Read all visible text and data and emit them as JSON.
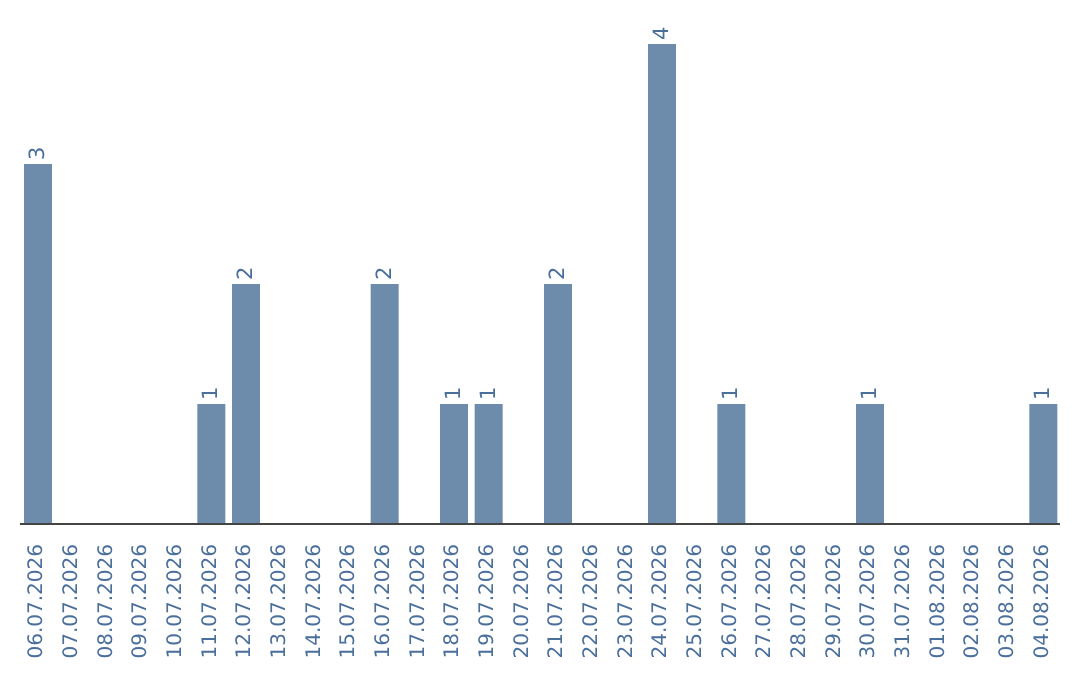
{
  "chart_data": {
    "type": "bar",
    "categories": [
      "06.07.2026",
      "07.07.2026",
      "08.07.2026",
      "09.07.2026",
      "10.07.2026",
      "11.07.2026",
      "12.07.2026",
      "13.07.2026",
      "14.07.2026",
      "15.07.2026",
      "16.07.2026",
      "17.07.2026",
      "18.07.2026",
      "19.07.2026",
      "20.07.2026",
      "21.07.2026",
      "22.07.2026",
      "23.07.2026",
      "24.07.2026",
      "25.07.2026",
      "26.07.2026",
      "27.07.2026",
      "28.07.2026",
      "29.07.2026",
      "30.07.2026",
      "31.07.2026",
      "01.08.2026",
      "02.08.2026",
      "03.08.2026",
      "04.08.2026"
    ],
    "values": [
      3,
      0,
      0,
      0,
      0,
      1,
      2,
      0,
      0,
      0,
      2,
      0,
      1,
      1,
      0,
      2,
      0,
      0,
      4,
      0,
      1,
      0,
      0,
      0,
      1,
      0,
      0,
      0,
      0,
      1
    ],
    "value_labels": [
      "3",
      null,
      null,
      null,
      null,
      "1",
      "2",
      null,
      null,
      null,
      "2",
      null,
      "1",
      "1",
      null,
      "2",
      null,
      null,
      "4",
      null,
      "1",
      null,
      null,
      null,
      "1",
      null,
      null,
      null,
      null,
      "1"
    ],
    "color": "#6d8cab"
  }
}
